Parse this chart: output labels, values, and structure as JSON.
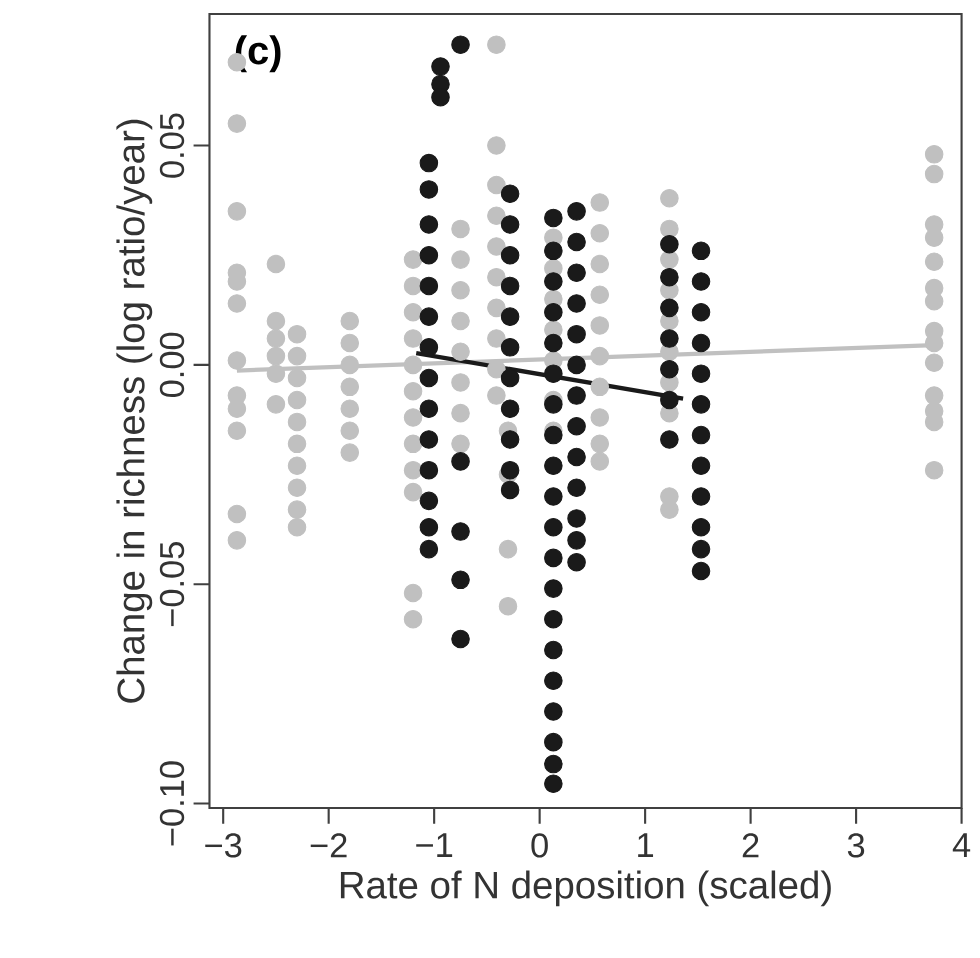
{
  "chart_data": {
    "type": "scatter",
    "xlabel": "Rate of N deposition (scaled)",
    "ylabel": "Change in richness (log ratio/year)",
    "annotations": [
      "(c)"
    ],
    "xlim": [
      -3.13,
      4.0
    ],
    "ylim": [
      -0.101,
      0.08
    ],
    "xticks": [
      {
        "value": -3,
        "label": "−3"
      },
      {
        "value": -2,
        "label": "−2"
      },
      {
        "value": -1,
        "label": "−1"
      },
      0,
      1,
      2,
      3,
      4
    ],
    "yticks": [
      {
        "value": -0.1,
        "label": "−0.10"
      },
      {
        "value": -0.05,
        "label": "−0.05"
      },
      {
        "value": 0,
        "label": "0.00"
      },
      {
        "value": 0.05,
        "label": "0.05"
      }
    ],
    "marker": "circle",
    "series": [
      {
        "color": "#c0c0c0",
        "x": [
          -2.87,
          -2.87,
          -2.87,
          -2.87,
          -2.87,
          -2.87,
          -2.87,
          -2.87,
          -2.87,
          -2.87,
          -2.87,
          -2.87,
          -2.5,
          -2.5,
          -2.5,
          -2.5,
          -2.5,
          -2.5,
          -2.3,
          -2.3,
          -2.3,
          -2.3,
          -2.3,
          -2.3,
          -2.3,
          -2.3,
          -2.3,
          -2.3,
          -1.8,
          -1.8,
          -1.8,
          -1.8,
          -1.8,
          -1.8,
          -1.8,
          -1.2,
          -1.2,
          -1.2,
          -1.2,
          -1.2,
          -1.2,
          -1.2,
          -1.2,
          -1.2,
          -1.2,
          -1.2,
          -1.2,
          -0.75,
          -0.75,
          -0.75,
          -0.75,
          -0.75,
          -0.75,
          -0.75,
          -0.75,
          -0.41,
          -0.41,
          -0.41,
          -0.41,
          -0.41,
          -0.41,
          -0.41,
          -0.41,
          -0.41,
          -0.41,
          -0.3,
          -0.3,
          -0.3,
          -0.3,
          0.13,
          0.13,
          0.13,
          0.13,
          0.13,
          0.13,
          0.13,
          0.57,
          0.57,
          0.57,
          0.57,
          0.57,
          0.57,
          0.57,
          0.57,
          0.57,
          0.57,
          1.23,
          1.23,
          1.23,
          1.23,
          1.23,
          1.23,
          1.23,
          1.23,
          1.23,
          1.23,
          3.74,
          3.74,
          3.74,
          3.74,
          3.74,
          3.74,
          3.74,
          3.74,
          3.74,
          3.74,
          3.74,
          3.74,
          3.74,
          3.74
        ],
        "values": [
          0.069,
          0.055,
          0.035,
          0.021,
          0.019,
          0.014,
          0.001,
          -0.007,
          -0.01,
          -0.015,
          -0.034,
          -0.04,
          0.023,
          0.01,
          0.006,
          0.002,
          -0.002,
          -0.009,
          0.007,
          0.002,
          -0.003,
          -0.008,
          -0.013,
          -0.018,
          -0.023,
          -0.028,
          -0.033,
          -0.037,
          0.01,
          0.005,
          0,
          -0.005,
          -0.01,
          -0.015,
          -0.02,
          0.024,
          0.018,
          0.012,
          0.006,
          0,
          -0.006,
          -0.012,
          -0.018,
          -0.024,
          -0.029,
          -0.052,
          -0.058,
          0.031,
          0.024,
          0.017,
          0.01,
          0.003,
          -0.004,
          -0.011,
          -0.018,
          0.073,
          0.05,
          0.041,
          0.034,
          0.027,
          0.02,
          0.013,
          0.006,
          -0.001,
          -0.007,
          -0.015,
          -0.025,
          -0.042,
          -0.055,
          0.029,
          0.022,
          0.015,
          0.008,
          0.001,
          -0.008,
          -0.015,
          0.037,
          0.03,
          0.023,
          0.016,
          0.009,
          0.002,
          -0.005,
          -0.012,
          -0.018,
          -0.022,
          0.038,
          0.031,
          0.024,
          0.017,
          0.01,
          0.003,
          -0.004,
          -0.011,
          -0.03,
          -0.033,
          0.048,
          0.0435,
          0.032,
          0.029,
          0.0235,
          0.0175,
          0.0145,
          0.0077,
          0.005,
          0.0005,
          -0.007,
          -0.0105,
          -0.013,
          -0.024
        ]
      },
      {
        "color": "#1a1a1a",
        "x": [
          -1.05,
          -1.05,
          -1.05,
          -1.05,
          -1.05,
          -1.05,
          -1.05,
          -1.05,
          -1.05,
          -1.05,
          -1.05,
          -1.05,
          -1.05,
          -1.05,
          -0.94,
          -0.94,
          -0.94,
          -0.75,
          -0.75,
          -0.75,
          -0.75,
          -0.75,
          -0.28,
          -0.28,
          -0.28,
          -0.28,
          -0.28,
          -0.28,
          -0.28,
          -0.28,
          -0.28,
          -0.28,
          -0.28,
          0.13,
          0.13,
          0.13,
          0.13,
          0.13,
          0.13,
          0.13,
          0.13,
          0.13,
          0.13,
          0.13,
          0.13,
          0.13,
          0.13,
          0.13,
          0.13,
          0.13,
          0.13,
          0.13,
          0.13,
          0.35,
          0.35,
          0.35,
          0.35,
          0.35,
          0.35,
          0.35,
          0.35,
          0.35,
          0.35,
          0.35,
          0.35,
          0.35,
          1.23,
          1.23,
          1.23,
          1.23,
          1.23,
          1.23,
          1.23,
          1.53,
          1.53,
          1.53,
          1.53,
          1.53,
          1.53,
          1.53,
          1.53,
          1.53,
          1.53,
          1.53,
          1.53
        ],
        "values": [
          0.046,
          0.04,
          0.032,
          0.025,
          0.018,
          0.011,
          0.004,
          -0.003,
          -0.01,
          -0.017,
          -0.024,
          -0.031,
          -0.037,
          -0.042,
          0.068,
          0.064,
          0.061,
          0.073,
          -0.022,
          -0.038,
          -0.049,
          -0.0625,
          0.039,
          0.032,
          0.025,
          0.018,
          0.011,
          0.004,
          -0.003,
          -0.01,
          -0.017,
          -0.024,
          -0.0285,
          0.0335,
          0.026,
          0.019,
          0.012,
          0.005,
          -0.002,
          -0.009,
          -0.016,
          -0.023,
          -0.03,
          -0.037,
          -0.044,
          -0.051,
          -0.058,
          -0.065,
          -0.072,
          -0.079,
          -0.086,
          -0.091,
          -0.0955,
          0.035,
          0.028,
          0.021,
          0.014,
          0.007,
          0,
          -0.007,
          -0.014,
          -0.021,
          -0.028,
          -0.035,
          -0.04,
          -0.045,
          0.0275,
          0.02,
          0.013,
          0.006,
          -0.001,
          -0.008,
          -0.017,
          0.026,
          0.019,
          0.012,
          0.005,
          -0.002,
          -0.009,
          -0.016,
          -0.023,
          -0.03,
          -0.037,
          -0.042,
          -0.047
        ]
      },
      {
        "type": "line",
        "marker": "none",
        "color": "#c0c0c0",
        "x": [
          -2.87,
          3.74
        ],
        "values": [
          -0.0013,
          0.0045
        ]
      },
      {
        "type": "line",
        "marker": "none",
        "color": "#1a1a1a",
        "x": [
          -1.17,
          1.36
        ],
        "values": [
          0.0027,
          -0.0077
        ]
      }
    ]
  }
}
